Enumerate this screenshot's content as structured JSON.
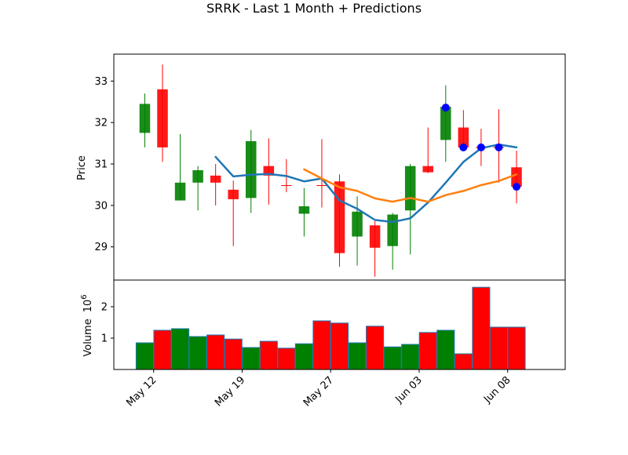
{
  "chart_data": {
    "type": "candlestick",
    "title": "SRRK - Last 1 Month + Predictions",
    "price_panel": {
      "ylabel": "Price",
      "ylim": [
        28.2,
        33.65
      ],
      "yticks": [
        29,
        30,
        31,
        32,
        33
      ],
      "grid": false
    },
    "volume_panel": {
      "ylabel": "Volume",
      "scale_label": "10",
      "scale_exponent": "6",
      "ylim": [
        0,
        2.85
      ],
      "yticks": [
        1,
        2
      ],
      "grid": false
    },
    "x_axis": {
      "xlim": [
        -1.75,
        23.75
      ],
      "tick_positions": [
        0.5,
        5.5,
        10.5,
        15.5,
        20.5
      ],
      "tick_labels": [
        "May 12",
        "May 19",
        "May 27",
        "Jun 03",
        "Jun 08"
      ]
    },
    "candles": [
      {
        "i": 0,
        "open": 31.75,
        "high": 32.7,
        "low": 31.4,
        "close": 32.45,
        "volume": 0.85
      },
      {
        "i": 1,
        "open": 32.8,
        "high": 33.4,
        "low": 31.05,
        "close": 31.4,
        "volume": 1.25
      },
      {
        "i": 2,
        "open": 30.12,
        "high": 31.72,
        "low": 30.12,
        "close": 30.55,
        "volume": 1.3
      },
      {
        "i": 3,
        "open": 30.55,
        "high": 30.95,
        "low": 29.88,
        "close": 30.85,
        "volume": 1.05
      },
      {
        "i": 4,
        "open": 30.72,
        "high": 31.0,
        "low": 30.0,
        "close": 30.55,
        "volume": 1.1
      },
      {
        "i": 5,
        "open": 30.38,
        "high": 30.6,
        "low": 29.02,
        "close": 30.15,
        "volume": 0.97
      },
      {
        "i": 6,
        "open": 30.18,
        "high": 31.82,
        "low": 29.82,
        "close": 31.55,
        "volume": 0.7
      },
      {
        "i": 7,
        "open": 30.95,
        "high": 31.62,
        "low": 30.02,
        "close": 30.72,
        "volume": 0.9
      },
      {
        "i": 8,
        "open": 30.48,
        "high": 31.12,
        "low": 30.32,
        "close": 30.48,
        "volume": 0.68
      },
      {
        "i": 9,
        "open": 29.8,
        "high": 30.42,
        "low": 29.25,
        "close": 29.98,
        "volume": 0.82
      },
      {
        "i": 10,
        "open": 30.48,
        "high": 31.6,
        "low": 29.95,
        "close": 30.48,
        "volume": 1.55
      },
      {
        "i": 11,
        "open": 30.58,
        "high": 30.75,
        "low": 28.52,
        "close": 28.85,
        "volume": 1.48
      },
      {
        "i": 12,
        "open": 29.25,
        "high": 30.22,
        "low": 28.55,
        "close": 29.85,
        "volume": 0.85
      },
      {
        "i": 13,
        "open": 29.52,
        "high": 29.62,
        "low": 28.28,
        "close": 28.98,
        "volume": 1.38
      },
      {
        "i": 14,
        "open": 29.02,
        "high": 29.82,
        "low": 28.45,
        "close": 29.78,
        "volume": 0.72
      },
      {
        "i": 15,
        "open": 29.88,
        "high": 31.0,
        "low": 28.82,
        "close": 30.95,
        "volume": 0.8
      },
      {
        "i": 16,
        "open": 30.95,
        "high": 31.88,
        "low": 30.78,
        "close": 30.8,
        "volume": 1.18
      },
      {
        "i": 17,
        "open": 31.58,
        "high": 32.9,
        "low": 31.05,
        "close": 32.38,
        "volume": 1.25
      },
      {
        "i": 18,
        "open": 31.88,
        "high": 32.3,
        "low": 31.35,
        "close": 31.4,
        "volume": 0.5
      },
      {
        "i": 19,
        "open": 31.4,
        "high": 31.85,
        "low": 30.95,
        "close": 31.4,
        "volume": 2.62
      },
      {
        "i": 20,
        "open": 31.4,
        "high": 32.32,
        "low": 30.55,
        "close": 31.4,
        "volume": 1.35
      },
      {
        "i": 21,
        "open": 30.92,
        "high": 31.32,
        "low": 30.05,
        "close": 30.45,
        "volume": 1.35
      }
    ],
    "series": [
      {
        "type": "line",
        "color": "#1f77b4",
        "points": [
          [
            4,
            31.17
          ],
          [
            5,
            30.7
          ],
          [
            6,
            30.74
          ],
          [
            7,
            30.76
          ],
          [
            8,
            30.71
          ],
          [
            9,
            30.58
          ],
          [
            10,
            30.65
          ],
          [
            11,
            30.12
          ],
          [
            12,
            29.92
          ],
          [
            13,
            29.65
          ],
          [
            14,
            29.6
          ],
          [
            15,
            29.69
          ],
          [
            16,
            30.07
          ],
          [
            17,
            30.55
          ],
          [
            18,
            31.05
          ],
          [
            19,
            31.38
          ],
          [
            20,
            31.47
          ],
          [
            21,
            31.4
          ]
        ]
      },
      {
        "type": "line",
        "color": "#ff7f0e",
        "points": [
          [
            9,
            30.87
          ],
          [
            10,
            30.65
          ],
          [
            11,
            30.44
          ],
          [
            12,
            30.35
          ],
          [
            13,
            30.17
          ],
          [
            14,
            30.09
          ],
          [
            15,
            30.18
          ],
          [
            16,
            30.09
          ],
          [
            17,
            30.25
          ],
          [
            18,
            30.35
          ],
          [
            19,
            30.49
          ],
          [
            20,
            30.59
          ],
          [
            21,
            30.75
          ]
        ]
      }
    ],
    "markers": {
      "color": "#0000ff",
      "points": [
        [
          17,
          32.36
        ],
        [
          18,
          31.4
        ],
        [
          19,
          31.4
        ],
        [
          20,
          31.4
        ],
        [
          21,
          30.45
        ]
      ]
    },
    "colors": {
      "up": "#008000",
      "down": "#ff0000",
      "marker": "#0000ff",
      "volume_edge": "#1f77b4"
    }
  }
}
